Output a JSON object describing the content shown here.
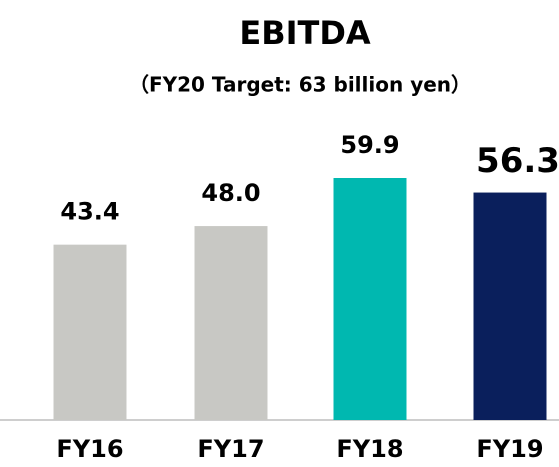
{
  "chart_data": {
    "type": "bar",
    "title": "EBITDA",
    "subtitle": "（FY20 Target: 63 billion yen）",
    "categories": [
      "FY16",
      "FY17",
      "FY18",
      "FY19"
    ],
    "values": [
      43.4,
      48.0,
      59.9,
      56.3
    ],
    "value_labels": [
      "43.4",
      "48.0",
      "59.9",
      "56.3"
    ],
    "colors": [
      "#c8c8c4",
      "#c8c8c4",
      "#00b8b0",
      "#0a1f5c"
    ]
  }
}
